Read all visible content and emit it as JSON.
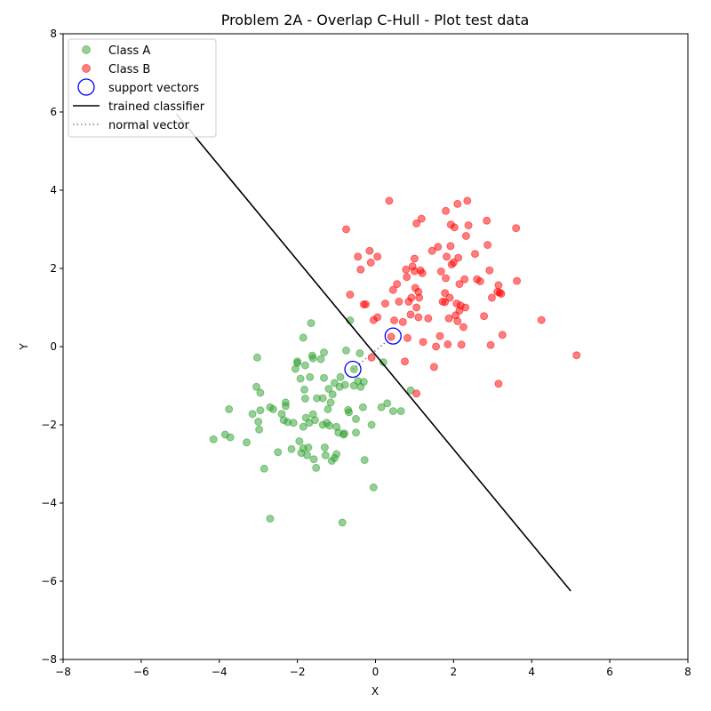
{
  "chart_data": {
    "type": "scatter",
    "title": "Problem 2A - Overlap C-Hull - Plot test data",
    "xlabel": "X",
    "ylabel": "Y",
    "xlim": [
      -8,
      8
    ],
    "ylim": [
      -8,
      8
    ],
    "xticks": [
      "−8",
      "−6",
      "−4",
      "−2",
      "0",
      "2",
      "4",
      "6",
      "8"
    ],
    "yticks": [
      "−8",
      "−6",
      "−4",
      "−2",
      "0",
      "2",
      "4",
      "6",
      "8"
    ],
    "grid": false,
    "legend_position": "top-left",
    "legend": [
      {
        "label": "Class A",
        "kind": "marker",
        "color": "#2ca02c"
      },
      {
        "label": "Class B",
        "kind": "marker",
        "color": "#ff0000"
      },
      {
        "label": "support vectors",
        "kind": "ring",
        "color": "#0000ff"
      },
      {
        "label": "trained classifier",
        "kind": "line",
        "color": "#000000"
      },
      {
        "label": "normal vector",
        "kind": "dotted",
        "color": "#808080"
      }
    ],
    "series": [
      {
        "name": "Class A",
        "color": "#2ca02c",
        "points": [
          [
            -4.15,
            -2.37
          ],
          [
            -3.85,
            -2.25
          ],
          [
            -3.75,
            -1.6
          ],
          [
            -3.72,
            -2.32
          ],
          [
            -3.3,
            -2.45
          ],
          [
            -3.15,
            -1.72
          ],
          [
            -3.05,
            -1.03
          ],
          [
            -3.03,
            -0.28
          ],
          [
            -3.0,
            -1.92
          ],
          [
            -2.98,
            -2.12
          ],
          [
            -2.95,
            -1.18
          ],
          [
            -2.95,
            -1.63
          ],
          [
            -2.85,
            -3.12
          ],
          [
            -2.7,
            -4.4
          ],
          [
            -2.7,
            -1.55
          ],
          [
            -2.62,
            -1.6
          ],
          [
            -2.5,
            -2.7
          ],
          [
            -2.4,
            -1.72
          ],
          [
            -2.35,
            -1.88
          ],
          [
            -2.3,
            -1.43
          ],
          [
            -2.3,
            -1.52
          ],
          [
            -2.25,
            -1.93
          ],
          [
            -2.15,
            -2.62
          ],
          [
            -2.1,
            -1.95
          ],
          [
            -2.05,
            -0.57
          ],
          [
            -2.0,
            -0.42
          ],
          [
            -2.0,
            -0.38
          ],
          [
            -1.95,
            -2.42
          ],
          [
            -1.92,
            -0.82
          ],
          [
            -1.9,
            -2.72
          ],
          [
            -1.85,
            0.23
          ],
          [
            -1.85,
            -2.05
          ],
          [
            -1.85,
            -2.6
          ],
          [
            -1.82,
            -1.1
          ],
          [
            -1.8,
            -0.48
          ],
          [
            -1.8,
            -1.33
          ],
          [
            -1.78,
            -1.82
          ],
          [
            -1.75,
            -2.78
          ],
          [
            -1.72,
            -2.58
          ],
          [
            -1.7,
            -1.95
          ],
          [
            -1.68,
            -0.78
          ],
          [
            -1.65,
            0.6
          ],
          [
            -1.62,
            -0.23
          ],
          [
            -1.6,
            -1.73
          ],
          [
            -1.6,
            -0.3
          ],
          [
            -1.58,
            -2.88
          ],
          [
            -1.55,
            -1.88
          ],
          [
            -1.52,
            -3.1
          ],
          [
            -1.5,
            -1.32
          ],
          [
            -1.4,
            -0.32
          ],
          [
            -1.35,
            -2.0
          ],
          [
            -1.35,
            -1.32
          ],
          [
            -1.32,
            -0.8
          ],
          [
            -1.32,
            -0.15
          ],
          [
            -1.3,
            -2.58
          ],
          [
            -1.28,
            -2.78
          ],
          [
            -1.25,
            -1.95
          ],
          [
            -1.22,
            -1.6
          ],
          [
            -1.2,
            -1.08
          ],
          [
            -1.18,
            -2.02
          ],
          [
            -1.15,
            -1.43
          ],
          [
            -1.12,
            -2.92
          ],
          [
            -1.1,
            -1.22
          ],
          [
            -1.05,
            -2.85
          ],
          [
            -1.05,
            -0.93
          ],
          [
            -1.0,
            -2.05
          ],
          [
            -1.0,
            -2.75
          ],
          [
            -0.95,
            -2.2
          ],
          [
            -0.92,
            -1.03
          ],
          [
            -0.9,
            -0.78
          ],
          [
            -0.85,
            -4.5
          ],
          [
            -0.82,
            -2.25
          ],
          [
            -0.8,
            -2.22
          ],
          [
            -0.78,
            -0.98
          ],
          [
            -0.75,
            -0.1
          ],
          [
            -0.7,
            -1.62
          ],
          [
            -0.68,
            -1.68
          ],
          [
            -0.65,
            0.67
          ],
          [
            -0.55,
            -1.0
          ],
          [
            -0.55,
            -0.58
          ],
          [
            -0.5,
            -1.85
          ],
          [
            -0.5,
            -2.2
          ],
          [
            -0.45,
            -0.88
          ],
          [
            -0.4,
            -0.17
          ],
          [
            -0.38,
            -1.03
          ],
          [
            -0.32,
            -1.55
          ],
          [
            -0.3,
            -0.9
          ],
          [
            -0.28,
            -2.9
          ],
          [
            -0.1,
            -2.0
          ],
          [
            -0.05,
            -3.6
          ],
          [
            0.15,
            -1.55
          ],
          [
            0.2,
            -0.4
          ],
          [
            0.3,
            -1.45
          ],
          [
            0.45,
            -1.65
          ],
          [
            0.65,
            -1.65
          ],
          [
            0.9,
            -1.12
          ]
        ]
      },
      {
        "name": "Class B",
        "color": "#ff0000",
        "points": [
          [
            -0.75,
            3.0
          ],
          [
            -0.65,
            1.33
          ],
          [
            -0.45,
            2.3
          ],
          [
            -0.38,
            1.97
          ],
          [
            -0.3,
            1.08
          ],
          [
            -0.25,
            1.08
          ],
          [
            -0.15,
            2.45
          ],
          [
            -0.12,
            2.15
          ],
          [
            -0.1,
            -0.28
          ],
          [
            -0.05,
            0.68
          ],
          [
            0.05,
            0.75
          ],
          [
            0.05,
            2.3
          ],
          [
            0.25,
            1.1
          ],
          [
            0.35,
            3.73
          ],
          [
            0.4,
            0.25
          ],
          [
            0.45,
            1.45
          ],
          [
            0.48,
            0.67
          ],
          [
            0.55,
            1.6
          ],
          [
            0.6,
            1.15
          ],
          [
            0.7,
            0.63
          ],
          [
            0.75,
            -0.38
          ],
          [
            0.78,
            1.97
          ],
          [
            0.8,
            1.78
          ],
          [
            0.82,
            0.22
          ],
          [
            0.85,
            1.15
          ],
          [
            0.9,
            0.82
          ],
          [
            0.92,
            1.25
          ],
          [
            0.95,
            2.05
          ],
          [
            1.0,
            2.25
          ],
          [
            1.0,
            1.93
          ],
          [
            1.02,
            1.5
          ],
          [
            1.05,
            1.0
          ],
          [
            1.05,
            3.15
          ],
          [
            1.05,
            -1.2
          ],
          [
            1.1,
            0.75
          ],
          [
            1.1,
            1.4
          ],
          [
            1.12,
            1.25
          ],
          [
            1.15,
            1.95
          ],
          [
            1.18,
            3.27
          ],
          [
            1.2,
            1.88
          ],
          [
            1.22,
            0.12
          ],
          [
            1.35,
            0.72
          ],
          [
            1.45,
            2.45
          ],
          [
            1.5,
            -0.52
          ],
          [
            1.55,
            0.0
          ],
          [
            1.6,
            2.55
          ],
          [
            1.65,
            0.27
          ],
          [
            1.68,
            1.92
          ],
          [
            1.72,
            1.15
          ],
          [
            1.78,
            1.37
          ],
          [
            1.78,
            1.14
          ],
          [
            1.8,
            1.75
          ],
          [
            1.8,
            3.47
          ],
          [
            1.82,
            2.3
          ],
          [
            1.85,
            0.06
          ],
          [
            1.88,
            0.72
          ],
          [
            1.9,
            1.25
          ],
          [
            1.92,
            2.57
          ],
          [
            1.93,
            3.12
          ],
          [
            1.95,
            2.1
          ],
          [
            2.0,
            2.15
          ],
          [
            2.02,
            3.05
          ],
          [
            2.05,
            0.8
          ],
          [
            2.08,
            1.1
          ],
          [
            2.1,
            3.65
          ],
          [
            2.1,
            0.65
          ],
          [
            2.12,
            2.27
          ],
          [
            2.15,
            1.6
          ],
          [
            2.15,
            0.92
          ],
          [
            2.18,
            1.05
          ],
          [
            2.2,
            0.05
          ],
          [
            2.25,
            0.5
          ],
          [
            2.28,
            1.72
          ],
          [
            2.3,
            1.0
          ],
          [
            2.32,
            2.83
          ],
          [
            2.35,
            3.73
          ],
          [
            2.38,
            3.1
          ],
          [
            2.55,
            2.37
          ],
          [
            2.6,
            1.72
          ],
          [
            2.68,
            1.67
          ],
          [
            2.78,
            0.78
          ],
          [
            2.85,
            3.22
          ],
          [
            2.87,
            2.6
          ],
          [
            2.92,
            1.95
          ],
          [
            2.95,
            0.04
          ],
          [
            2.98,
            1.25
          ],
          [
            3.12,
            1.4
          ],
          [
            3.15,
            -0.95
          ],
          [
            3.15,
            1.57
          ],
          [
            3.18,
            1.38
          ],
          [
            3.22,
            1.35
          ],
          [
            3.25,
            0.3
          ],
          [
            3.6,
            3.03
          ],
          [
            3.62,
            1.68
          ],
          [
            4.25,
            0.68
          ],
          [
            5.15,
            -0.22
          ]
        ]
      }
    ],
    "support_vectors": [
      [
        -0.58,
        -0.58
      ],
      [
        0.45,
        0.27
      ]
    ],
    "trained_classifier": [
      [
        -5.1,
        5.95
      ],
      [
        5.0,
        -6.25
      ]
    ],
    "normal_vector": [
      [
        -0.58,
        -0.58
      ],
      [
        0.45,
        0.27
      ]
    ]
  }
}
